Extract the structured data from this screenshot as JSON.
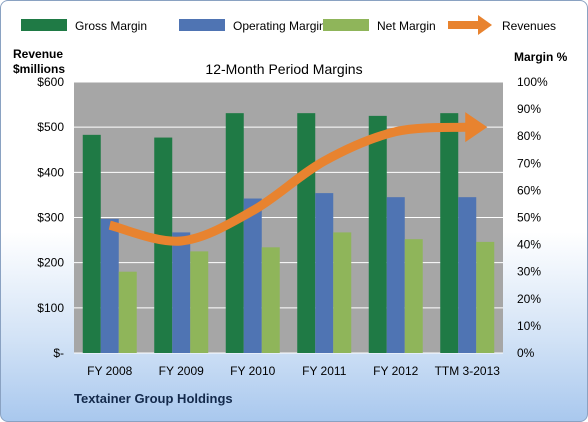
{
  "chart_data": {
    "type": "bar",
    "title": "12-Month Period Margins",
    "company": "Textainer Group Holdings",
    "categories": [
      "FY 2008",
      "FY 2009",
      "FY 2010",
      "FY 2011",
      "FY 2012",
      "TTM 3-2013"
    ],
    "left_axis": {
      "label_line1": "Revenue",
      "label_line2": "$millions",
      "ticks": [
        "$-",
        "$100",
        "$200",
        "$300",
        "$400",
        "$500",
        "$600"
      ],
      "ylim": [
        0,
        600
      ]
    },
    "right_axis": {
      "label": "Margin %",
      "ticks": [
        "0%",
        "10%",
        "20%",
        "30%",
        "40%",
        "50%",
        "60%",
        "70%",
        "80%",
        "90%",
        "100%"
      ],
      "ylim": [
        0,
        100
      ]
    },
    "series": [
      {
        "name": "Gross Margin",
        "type": "bar",
        "axis": "right",
        "color": "#1f7a45",
        "values": [
          80.5,
          79.5,
          88.5,
          88.5,
          87.5,
          88.5
        ]
      },
      {
        "name": "Operating Margin",
        "type": "bar",
        "axis": "right",
        "color": "#4f74b3",
        "values": [
          49.5,
          44.5,
          57,
          59,
          57.5,
          57.5
        ]
      },
      {
        "name": "Net Margin",
        "type": "bar",
        "axis": "right",
        "color": "#8fb55a",
        "values": [
          30,
          37.5,
          39,
          44.5,
          42,
          41
        ]
      },
      {
        "name": "Revenues",
        "type": "line",
        "axis": "left",
        "color": "#e8832f",
        "values": [
          283,
          248,
          315,
          425,
          490,
          500
        ]
      }
    ],
    "grid": true,
    "legend_position": "top"
  }
}
